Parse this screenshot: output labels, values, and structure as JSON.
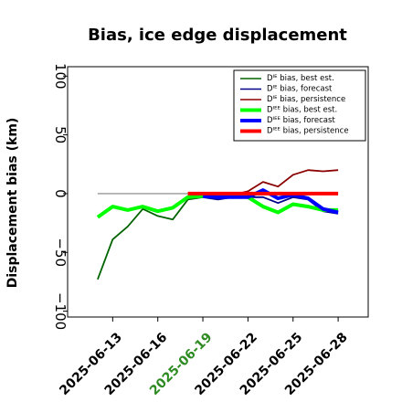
{
  "chart_data": {
    "type": "line",
    "title": "Bias, ice edge displacement",
    "ylabel": "Displacement bias (km)",
    "xlabel": "",
    "ylim": [
      -105,
      108
    ],
    "xlim": [
      "2025-06-10",
      "2025-06-30"
    ],
    "yticks": [
      -100,
      -50,
      0,
      50,
      100
    ],
    "ytick_labels": [
      "−100",
      "−50",
      "0",
      "50",
      "100"
    ],
    "xticks": [
      "2025-06-13",
      "2025-06-16",
      "2025-06-19",
      "2025-06-22",
      "2025-06-25",
      "2025-06-28"
    ],
    "highlight_xtick": "2025-06-19",
    "highlight_color": "#2e8b22",
    "zero_line": {
      "y": 0,
      "x_start": "2025-06-12",
      "x_end": "2025-06-28",
      "color": "#808080"
    },
    "legend_placement": "upper right",
    "grid": false,
    "series": [
      {
        "name": "Dᴵᴱ bias, best est.",
        "color": "#006400",
        "width": "thin",
        "x": [
          "2025-06-12",
          "2025-06-13",
          "2025-06-14",
          "2025-06-15",
          "2025-06-16",
          "2025-06-17",
          "2025-06-18",
          "2025-06-19"
        ],
        "y": [
          -73,
          -39,
          -28,
          -13,
          -19,
          -22,
          -5,
          -3
        ]
      },
      {
        "name": "Dᴵᴱ bias, forecast",
        "color": "#00008b",
        "width": "thin",
        "x": [
          "2025-06-19",
          "2025-06-20",
          "2025-06-21",
          "2025-06-22",
          "2025-06-23",
          "2025-06-24",
          "2025-06-25",
          "2025-06-26",
          "2025-06-27",
          "2025-06-28"
        ],
        "y": [
          -3,
          -5,
          -3,
          -3,
          -3,
          -8,
          -3,
          -5,
          -15,
          -17
        ]
      },
      {
        "name": "Dᴵᴱ bias, persistence",
        "color": "#8b0000",
        "width": "thin",
        "x": [
          "2025-06-19",
          "2025-06-20",
          "2025-06-21",
          "2025-06-22",
          "2025-06-23",
          "2025-06-24",
          "2025-06-25",
          "2025-06-26",
          "2025-06-27",
          "2025-06-28"
        ],
        "y": [
          -1,
          -2,
          -1,
          2,
          10,
          6,
          16,
          20,
          19,
          20
        ]
      },
      {
        "name": "Dᴵᴱᴱ bias, best est.",
        "color": "#00ff00",
        "width": "thick",
        "x": [
          "2025-06-12",
          "2025-06-13",
          "2025-06-14",
          "2025-06-15",
          "2025-06-16",
          "2025-06-17",
          "2025-06-18",
          "2025-06-19",
          "2025-06-20",
          "2025-06-21",
          "2025-06-22",
          "2025-06-23",
          "2025-06-24",
          "2025-06-25",
          "2025-06-26",
          "2025-06-27",
          "2025-06-28"
        ],
        "y": [
          -20,
          -11,
          -14,
          -11,
          -15,
          -12,
          -3,
          -2,
          -2,
          -2,
          -3,
          -11,
          -16,
          -9,
          -11,
          -14,
          -14
        ]
      },
      {
        "name": "Dᴵᴱᴱ bias, forecast",
        "color": "#0000ff",
        "width": "thick",
        "x": [
          "2025-06-19",
          "2025-06-20",
          "2025-06-21",
          "2025-06-22",
          "2025-06-23",
          "2025-06-24",
          "2025-06-25",
          "2025-06-26",
          "2025-06-27",
          "2025-06-28"
        ],
        "y": [
          -2,
          -3,
          -3,
          -3,
          3,
          -4,
          -1,
          -4,
          -13,
          -16
        ]
      },
      {
        "name": "Dᴵᴱᴱ bias, persistence",
        "color": "#ff0000",
        "width": "thick",
        "x": [
          "2025-06-18",
          "2025-06-19",
          "2025-06-20",
          "2025-06-21",
          "2025-06-22",
          "2025-06-23",
          "2025-06-24",
          "2025-06-25",
          "2025-06-26",
          "2025-06-27",
          "2025-06-28"
        ],
        "y": [
          0,
          0,
          0,
          0,
          0,
          0,
          0,
          0,
          0,
          0,
          0
        ]
      }
    ]
  }
}
